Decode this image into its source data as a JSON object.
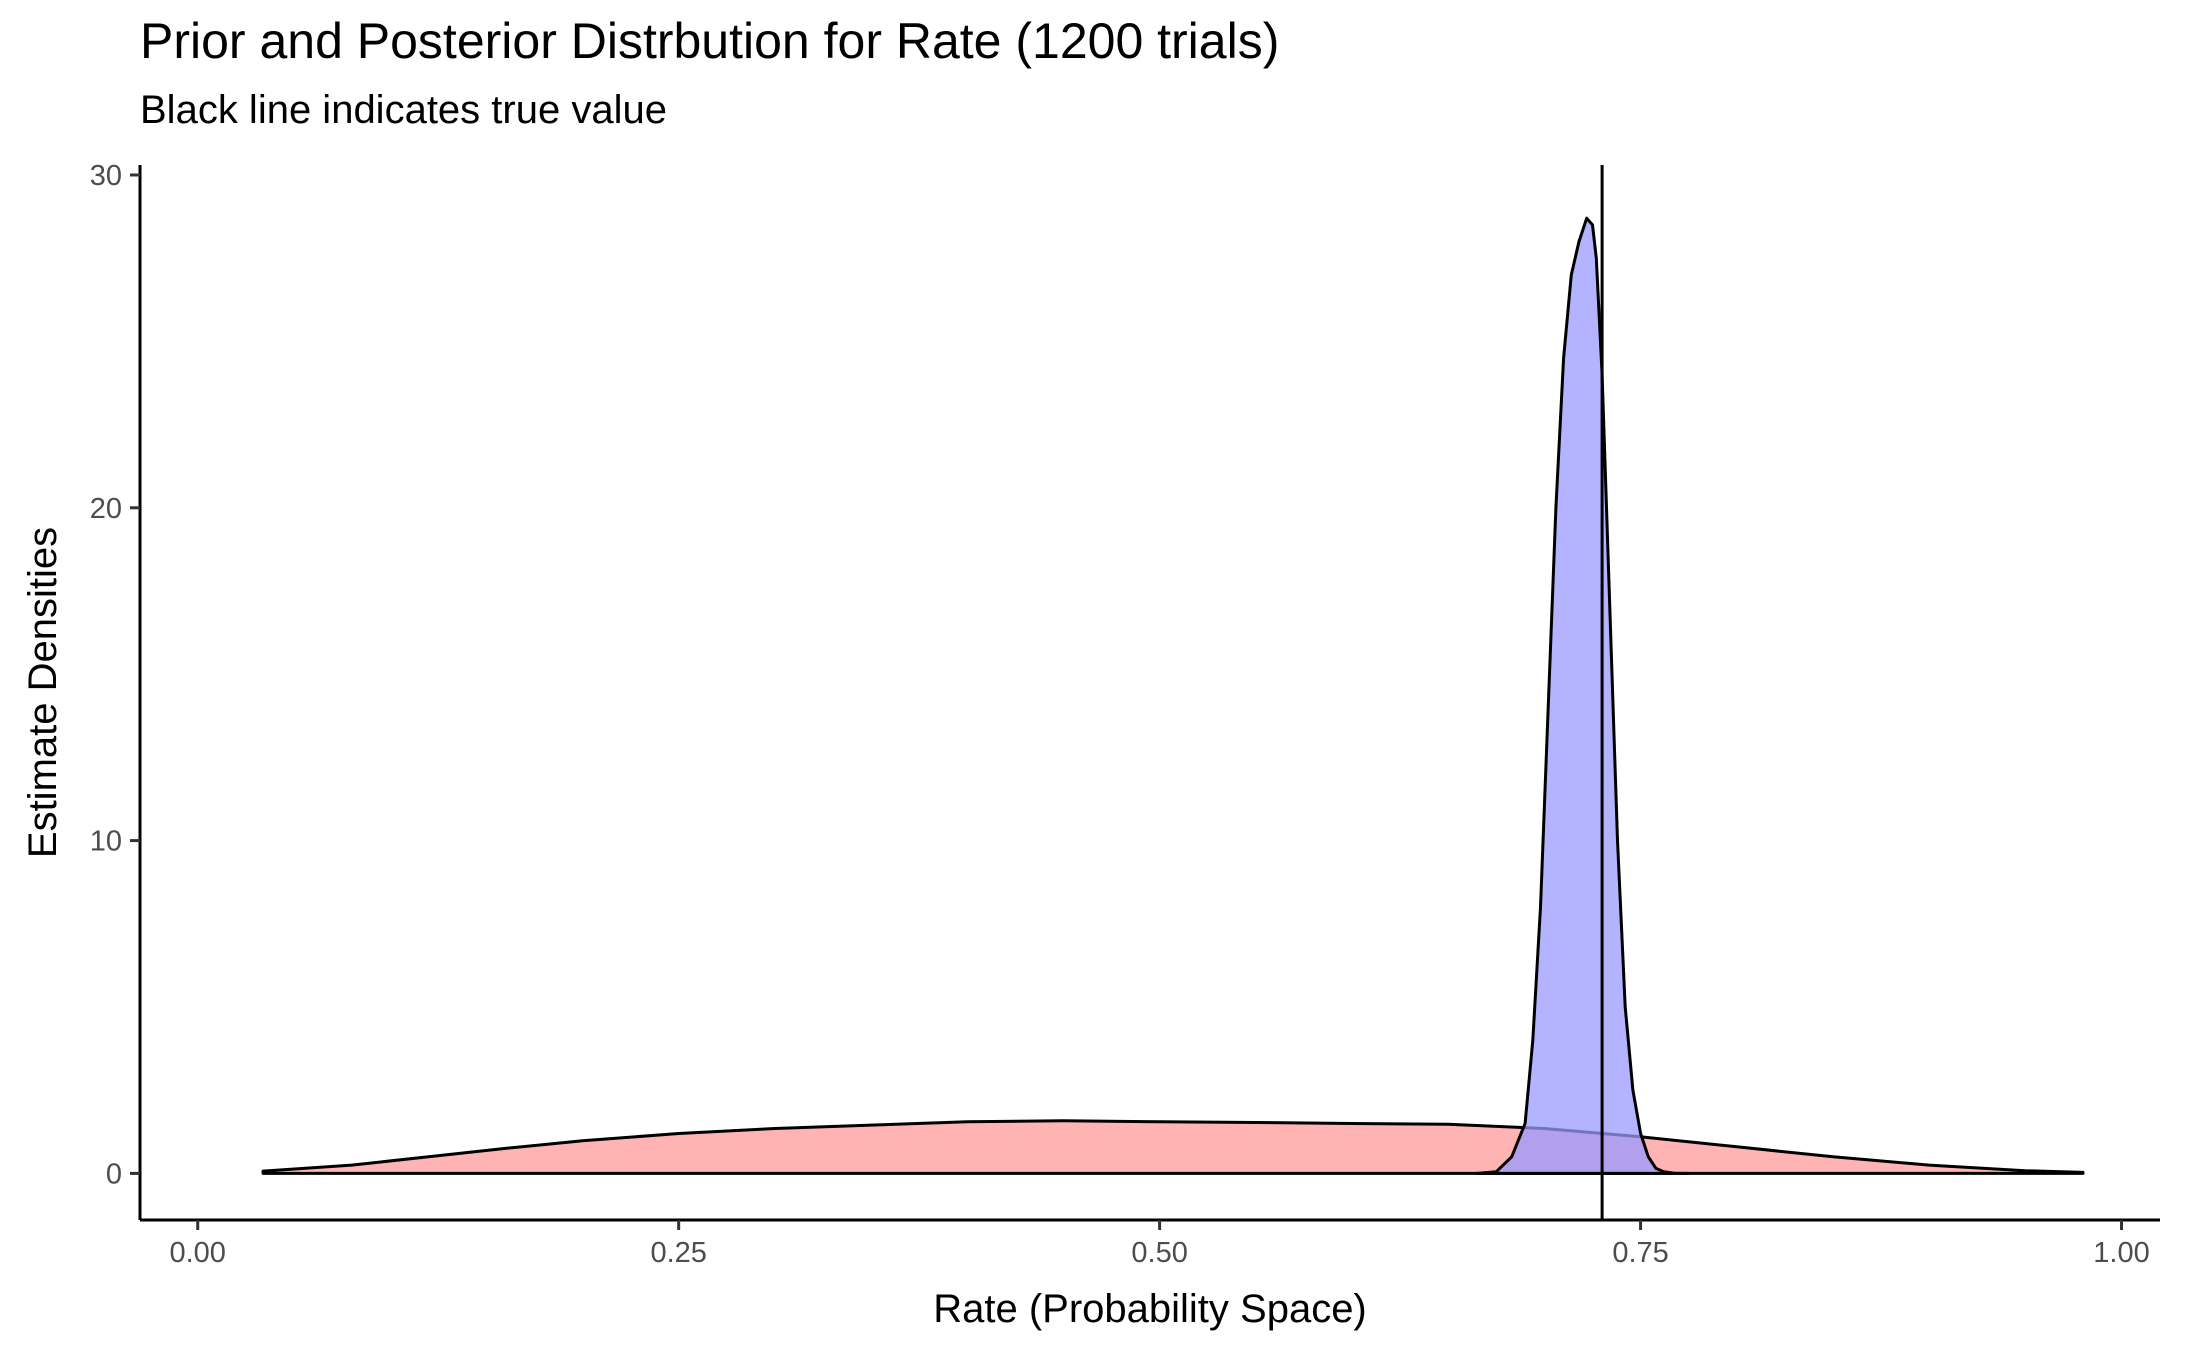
{
  "chart_data": {
    "type": "area",
    "title": "Prior and Posterior Distrbution for Rate (1200 trials)",
    "subtitle": "Black line indicates true value",
    "xlabel": "Rate (Probability Space)",
    "ylabel": "Estimate Densities",
    "xlim": [
      -0.03,
      1.02
    ],
    "ylim": [
      -1.4,
      30.3
    ],
    "xticks": [
      0.0,
      0.25,
      0.5,
      0.75,
      1.0
    ],
    "xtick_labels": [
      "0.00",
      "0.25",
      "0.50",
      "0.75",
      "1.00"
    ],
    "yticks": [
      0,
      10,
      20,
      30
    ],
    "ytick_labels": [
      "0",
      "10",
      "20",
      "30"
    ],
    "true_value": 0.73,
    "grid": false,
    "series": [
      {
        "fill": "#ff9999",
        "fill_opacity": 0.75,
        "x": [
          0.034,
          0.08,
          0.12,
          0.16,
          0.2,
          0.25,
          0.3,
          0.35,
          0.4,
          0.45,
          0.5,
          0.55,
          0.6,
          0.65,
          0.7,
          0.75,
          0.8,
          0.85,
          0.9,
          0.95,
          0.98
        ],
        "y": [
          0.07,
          0.25,
          0.5,
          0.75,
          0.98,
          1.2,
          1.35,
          1.45,
          1.55,
          1.58,
          1.55,
          1.53,
          1.5,
          1.48,
          1.35,
          1.1,
          0.8,
          0.5,
          0.25,
          0.08,
          0.03
        ]
      },
      {
        "fill": "#9999ff",
        "fill_opacity": 0.75,
        "x": [
          0.665,
          0.675,
          0.683,
          0.69,
          0.694,
          0.698,
          0.702,
          0.706,
          0.71,
          0.714,
          0.718,
          0.722,
          0.725,
          0.727,
          0.73,
          0.734,
          0.738,
          0.742,
          0.746,
          0.75,
          0.754,
          0.758,
          0.762,
          0.768,
          0.775
        ],
        "y": [
          0.0,
          0.05,
          0.5,
          1.5,
          4.0,
          8.0,
          14.0,
          20.0,
          24.5,
          27.0,
          28.0,
          28.7,
          28.5,
          27.5,
          24.0,
          17.0,
          10.0,
          5.0,
          2.5,
          1.2,
          0.5,
          0.15,
          0.05,
          0.0,
          0.0
        ]
      }
    ]
  }
}
